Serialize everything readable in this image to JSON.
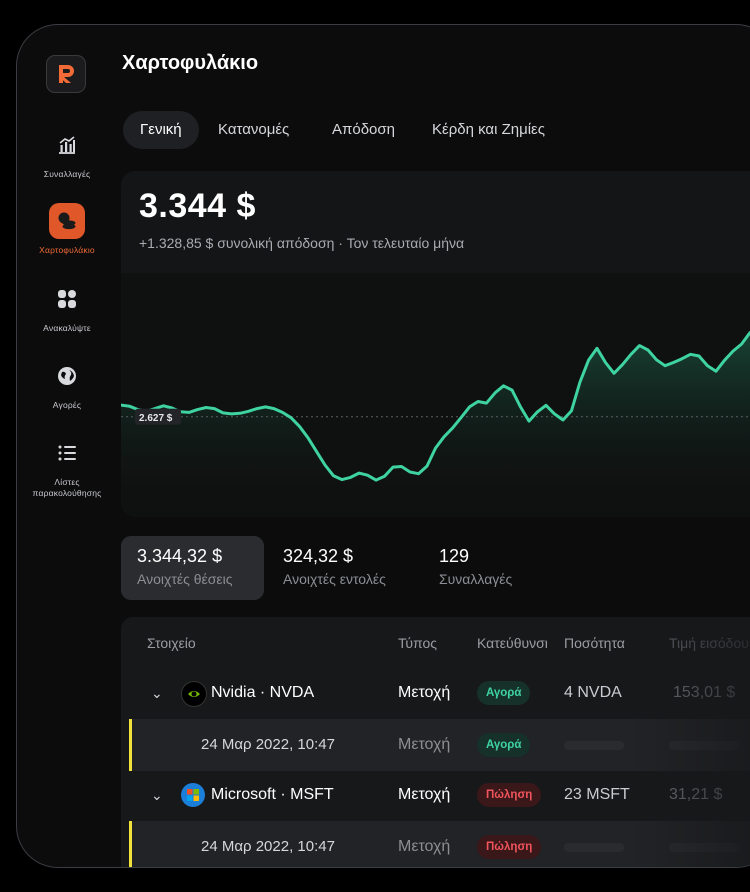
{
  "header": {
    "title": "Χαρτοφυλάκιο"
  },
  "logo_letter": "R",
  "sidebar": {
    "items": [
      {
        "label": "Συναλλαγές",
        "icon": "chart-bars-icon",
        "active": false
      },
      {
        "label": "Χαρτοφυλάκιο",
        "icon": "coins-icon",
        "active": true
      },
      {
        "label": "Ανακαλύψτε",
        "icon": "grid-icon",
        "active": false
      },
      {
        "label": "Αγορές",
        "icon": "globe-icon",
        "active": false
      },
      {
        "label": "Λίστες παρακολούθησης",
        "icon": "list-icon",
        "active": false
      }
    ]
  },
  "tabs": [
    {
      "label": "Γενική",
      "active": true
    },
    {
      "label": "Κατανομές",
      "active": false
    },
    {
      "label": "Απόδοση",
      "active": false
    },
    {
      "label": "Κέρδη και Ζημίες",
      "active": false
    }
  ],
  "summary": {
    "value": "3.344 $",
    "subtitle": "+1.328,85 $ συνολική απόδοση · Τον τελευταίο μήνα"
  },
  "chart_data": {
    "type": "line",
    "reference_label": "2.627 $",
    "reference_value": 2627,
    "ylim": [
      1600,
      4100
    ],
    "x": [
      0,
      1,
      2,
      3,
      4,
      5,
      6,
      7,
      8,
      9,
      10,
      11,
      12,
      13,
      14,
      15,
      16,
      17,
      18,
      19,
      20,
      21,
      22,
      23,
      24,
      25,
      26,
      27,
      28,
      29,
      30,
      31,
      32,
      33,
      34,
      35,
      36,
      37,
      38,
      39,
      40,
      41,
      42,
      43,
      44,
      45,
      46,
      47,
      48,
      49,
      50,
      51,
      52,
      53,
      54,
      55,
      56,
      57,
      58,
      59,
      60,
      61,
      62,
      63,
      64,
      65,
      66,
      67,
      68,
      69,
      70,
      71,
      72,
      73,
      74,
      75,
      76,
      77,
      78,
      79,
      80
    ],
    "values": [
      2747,
      2735,
      2700,
      2683,
      2711,
      2739,
      2717,
      2678,
      2672,
      2700,
      2722,
      2711,
      2667,
      2656,
      2662,
      2683,
      2711,
      2728,
      2711,
      2672,
      2617,
      2528,
      2411,
      2272,
      2133,
      2022,
      1983,
      2006,
      2050,
      2028,
      1978,
      2017,
      2111,
      2117,
      2061,
      2044,
      2122,
      2306,
      2422,
      2511,
      2617,
      2728,
      2783,
      2767,
      2872,
      2944,
      2900,
      2728,
      2583,
      2678,
      2744,
      2656,
      2594,
      2689,
      2983,
      3206,
      3328,
      3183,
      3072,
      3161,
      3267,
      3356,
      3311,
      3211,
      3150,
      3183,
      3222,
      3267,
      3250,
      3150,
      3094,
      3206,
      3300,
      3372,
      3489,
      3511,
      3444,
      3361,
      3278,
      3222,
      3267
    ]
  },
  "stats": [
    {
      "value": "3.344,32 $",
      "label": "Ανοιχτές θέσεις",
      "active": true
    },
    {
      "value": "324,32 $",
      "label": "Ανοιχτές εντολές",
      "active": false
    },
    {
      "value": "129",
      "label": "Συναλλαγές",
      "active": false
    }
  ],
  "table": {
    "headers": [
      "Στοιχείο",
      "Τύπος",
      "Κατεύθυνση",
      "Ποσότητα",
      "Τιμή εισόδου"
    ],
    "rows": [
      {
        "name": "Nvidia · NVDA",
        "type": "Μετοχή",
        "direction": "Αγορά",
        "quantity": "4 NVDA",
        "entry_price": "153,01 $"
      },
      {
        "date": "24 Μαρ 2022, 10:47",
        "type": "Μετοχή",
        "direction": "Αγορά"
      },
      {
        "name": "Microsoft · MSFT",
        "type": "Μετοχή",
        "direction": "Πώληση",
        "quantity": "23 MSFT",
        "entry_price": "31,21 $"
      },
      {
        "date": "24 Μαρ 2022, 10:47",
        "type": "Μετοχή",
        "direction": "Πώληση"
      }
    ]
  },
  "colors": {
    "accent": "#e0582a",
    "line": "#3ed3a0",
    "buy": "#3ed3a0",
    "sell": "#f0545c",
    "marker": "#f0e23a"
  }
}
